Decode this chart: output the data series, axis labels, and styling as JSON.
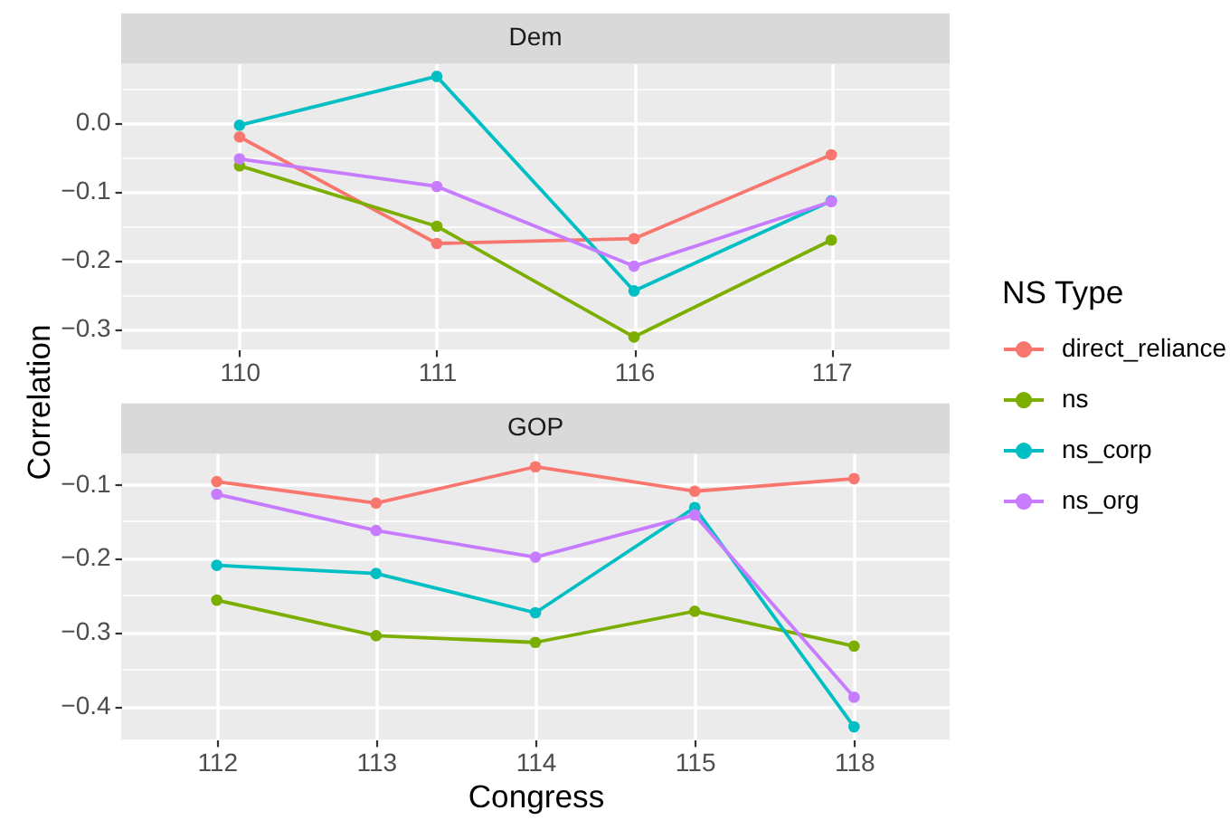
{
  "chart_data": [
    {
      "type": "line",
      "title": "Dem",
      "ylabel": "Correlation",
      "legend_title": "NS Type",
      "legend": "right",
      "grid": true,
      "marker": "circle",
      "categories": [
        "110",
        "111",
        "116",
        "117"
      ],
      "series": [
        {
          "name": "direct_reliance",
          "color": "#f8766d",
          "values": [
            -0.021,
            -0.176,
            -0.169,
            -0.047
          ]
        },
        {
          "name": "ns",
          "color": "#7cae00",
          "values": [
            -0.063,
            -0.151,
            -0.312,
            -0.171
          ]
        },
        {
          "name": "ns_corp",
          "color": "#00bfc4",
          "values": [
            -0.004,
            0.067,
            -0.245,
            -0.114
          ]
        },
        {
          "name": "ns_org",
          "color": "#c77cff",
          "values": [
            -0.053,
            -0.093,
            -0.209,
            -0.115
          ]
        }
      ],
      "ylim": [
        -0.33,
        0.086
      ],
      "yticks": [
        {
          "value": 0,
          "label": "0.0"
        },
        {
          "value": -0.1,
          "label": "−0.1"
        },
        {
          "value": -0.2,
          "label": "−0.2"
        },
        {
          "value": -0.3,
          "label": "−0.3"
        }
      ]
    },
    {
      "type": "line",
      "title": "GOP",
      "xlabel": "Congress",
      "grid": true,
      "marker": "circle",
      "categories": [
        "112",
        "113",
        "114",
        "115",
        "118"
      ],
      "series": [
        {
          "name": "direct_reliance",
          "color": "#f8766d",
          "values": [
            -0.097,
            -0.126,
            -0.077,
            -0.11,
            -0.093
          ]
        },
        {
          "name": "ns",
          "color": "#7cae00",
          "values": [
            -0.257,
            -0.305,
            -0.314,
            -0.272,
            -0.319
          ]
        },
        {
          "name": "ns_corp",
          "color": "#00bfc4",
          "values": [
            -0.21,
            -0.221,
            -0.274,
            -0.132,
            -0.428
          ]
        },
        {
          "name": "ns_org",
          "color": "#c77cff",
          "values": [
            -0.114,
            -0.163,
            -0.199,
            -0.142,
            -0.388
          ]
        }
      ],
      "ylim": [
        -0.445,
        -0.059
      ],
      "yticks": [
        {
          "value": -0.1,
          "label": "−0.1"
        },
        {
          "value": -0.2,
          "label": "−0.2"
        },
        {
          "value": -0.3,
          "label": "−0.3"
        },
        {
          "value": -0.4,
          "label": "−0.4"
        }
      ]
    }
  ]
}
